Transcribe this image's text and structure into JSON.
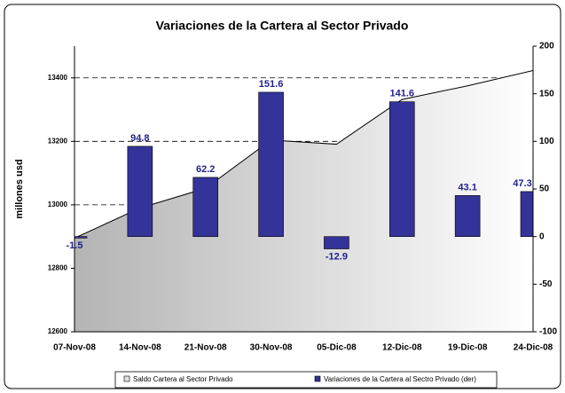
{
  "chart_data": {
    "type": "combo",
    "title": "Variaciones de la Cartera al Sector Privado",
    "y_label": "millones usd",
    "categories": [
      "07-Nov-08",
      "14-Nov-08",
      "21-Nov-08",
      "30-Nov-08",
      "05-Dic-08",
      "12-Dic-08",
      "19-Dic-08",
      "24-Dic-08"
    ],
    "series": [
      {
        "name": "Saldo Cartera al Sector Privado",
        "type": "area",
        "color": "#c8c8c8",
        "values": [
          12895,
          12990,
          13052,
          13204,
          13191,
          13332,
          13375,
          13423
        ]
      },
      {
        "name": "Variaciones de la Cartera al Sectro Privado (der)",
        "type": "bar",
        "axis": "y2",
        "color": "#333399",
        "values": [
          -1.5,
          94.8,
          62.2,
          151.6,
          -12.9,
          141.6,
          43.1,
          47.3
        ]
      }
    ],
    "ylim": [
      12600,
      13500
    ],
    "yticks": [
      12600,
      12800,
      13000,
      13200,
      13400
    ],
    "y2lim": [
      -100,
      200
    ],
    "y2ticks": [
      -100,
      -50,
      0,
      50,
      100,
      150,
      200
    ],
    "grid": true
  }
}
